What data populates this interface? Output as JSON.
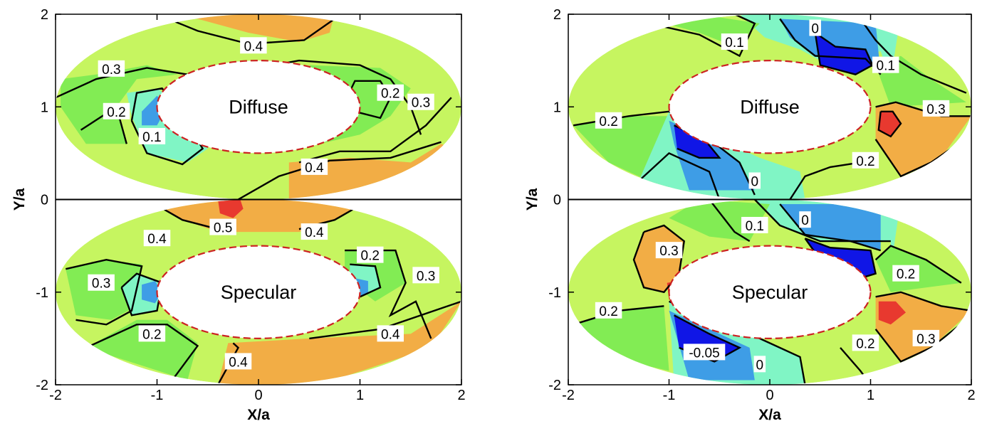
{
  "colors": {
    "c_neg": "#1016e6",
    "c_0": "#3e9de6",
    "c_01": "#80f5c5",
    "c_02": "#82ec54",
    "c_03": "#c6f560",
    "c_04": "#f2ad45",
    "c_05": "#e8392f",
    "background": "#ffffff",
    "contour_line": "#000000",
    "hole_edge": "#cc2222"
  },
  "chart_data": [
    {
      "type": "contour",
      "panel": "left",
      "xlabel": "X/a",
      "ylabel": "Y/a",
      "xlim": [
        -2,
        2
      ],
      "ylim": [
        -2,
        2
      ],
      "xticks": [
        "-2",
        "-1",
        "0",
        "1",
        "2"
      ],
      "yticks": [
        "2",
        "1",
        "0",
        "-1",
        "-2"
      ],
      "subplots": [
        {
          "label": "Diffuse",
          "center": [
            0,
            1
          ],
          "inner_semi_axes": [
            1.0,
            0.5
          ],
          "outer_semi_axes": [
            2.0,
            1.0
          ],
          "contour_labels": [
            {
              "text": "0.4",
              "x": -0.05,
              "y": 1.66
            },
            {
              "text": "0.3",
              "x": -1.45,
              "y": 1.41
            },
            {
              "text": "0.2",
              "x": -1.4,
              "y": 0.95
            },
            {
              "text": "0.1",
              "x": -1.05,
              "y": 0.68
            },
            {
              "text": "0.2",
              "x": 1.3,
              "y": 1.15
            },
            {
              "text": "0.3",
              "x": 1.6,
              "y": 1.05
            },
            {
              "text": "0.4",
              "x": 0.55,
              "y": 0.35
            }
          ]
        },
        {
          "label": "Specular",
          "center": [
            0,
            -1
          ],
          "inner_semi_axes": [
            1.0,
            0.5
          ],
          "outer_semi_axes": [
            2.0,
            1.0
          ],
          "contour_labels": [
            {
              "text": "0.5",
              "x": -0.35,
              "y": -0.3
            },
            {
              "text": "0.4",
              "x": -1.0,
              "y": -0.42
            },
            {
              "text": "0.4",
              "x": 0.55,
              "y": -0.35
            },
            {
              "text": "0.2",
              "x": 1.1,
              "y": -0.6
            },
            {
              "text": "0.3",
              "x": -1.55,
              "y": -0.9
            },
            {
              "text": "0.3",
              "x": 1.65,
              "y": -0.82
            },
            {
              "text": "0.2",
              "x": -1.05,
              "y": -1.45
            },
            {
              "text": "0.4",
              "x": 1.3,
              "y": -1.45
            },
            {
              "text": "0.4",
              "x": -0.2,
              "y": -1.75
            }
          ]
        }
      ]
    },
    {
      "type": "contour",
      "panel": "right",
      "xlabel": "X/a",
      "ylabel": "Y/a",
      "xlim": [
        -2,
        2
      ],
      "ylim": [
        -2,
        2
      ],
      "xticks": [
        "-2",
        "-1",
        "0",
        "1",
        "2"
      ],
      "yticks": [
        "2",
        "1",
        "0",
        "-1",
        "-2"
      ],
      "subplots": [
        {
          "label": "Diffuse",
          "center": [
            0,
            1
          ],
          "inner_semi_axes": [
            1.0,
            0.5
          ],
          "outer_semi_axes": [
            2.0,
            1.0
          ],
          "contour_labels": [
            {
              "text": "0.1",
              "x": -0.35,
              "y": 1.7
            },
            {
              "text": "0",
              "x": 0.45,
              "y": 1.85
            },
            {
              "text": "0.1",
              "x": 1.15,
              "y": 1.45
            },
            {
              "text": "0.2",
              "x": -1.6,
              "y": 0.85
            },
            {
              "text": "0.3",
              "x": 1.65,
              "y": 0.98
            },
            {
              "text": "0.2",
              "x": 0.95,
              "y": 0.42
            },
            {
              "text": "0",
              "x": -0.15,
              "y": 0.2
            }
          ]
        },
        {
          "label": "Specular",
          "center": [
            0,
            -1
          ],
          "inner_semi_axes": [
            1.0,
            0.5
          ],
          "outer_semi_axes": [
            2.0,
            1.0
          ],
          "contour_labels": [
            {
              "text": "0.1",
              "x": -0.15,
              "y": -0.28
            },
            {
              "text": "0",
              "x": 0.35,
              "y": -0.22
            },
            {
              "text": "0.3",
              "x": -1.0,
              "y": -0.55
            },
            {
              "text": "0.2",
              "x": 1.35,
              "y": -0.8
            },
            {
              "text": "0.2",
              "x": -1.6,
              "y": -1.2
            },
            {
              "text": "0.2",
              "x": 0.95,
              "y": -1.55
            },
            {
              "text": "0.3",
              "x": 1.55,
              "y": -1.5
            },
            {
              "text": "-0.05",
              "x": -0.65,
              "y": -1.65
            },
            {
              "text": "0",
              "x": -0.1,
              "y": -1.78
            }
          ]
        }
      ]
    }
  ]
}
